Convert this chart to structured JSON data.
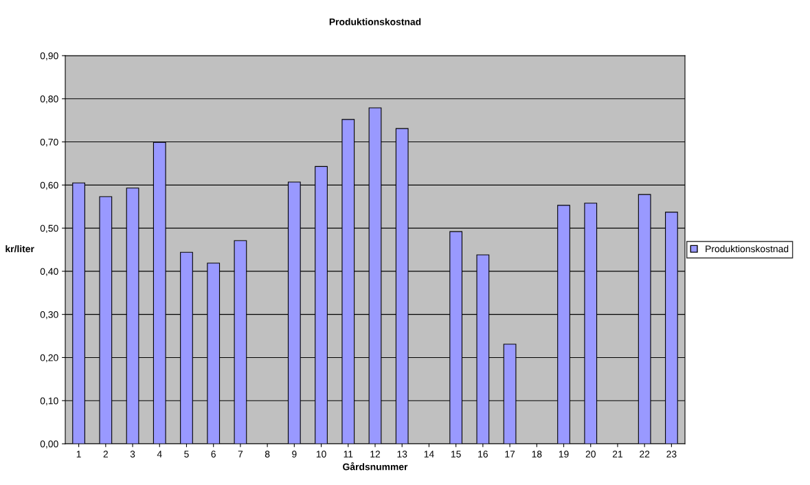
{
  "chart_data": {
    "type": "bar",
    "title": "Produktionskostnad",
    "xlabel": "Gårdsnummer",
    "ylabel": "kr/liter",
    "categories": [
      "1",
      "2",
      "3",
      "4",
      "5",
      "6",
      "7",
      "8",
      "9",
      "10",
      "11",
      "12",
      "13",
      "14",
      "15",
      "16",
      "17",
      "18",
      "19",
      "20",
      "21",
      "22",
      "23"
    ],
    "series": [
      {
        "name": "Produktionskostnad",
        "color": "#9999ff",
        "values": [
          0.605,
          0.573,
          0.593,
          0.699,
          0.444,
          0.419,
          0.471,
          null,
          0.607,
          0.643,
          0.752,
          0.779,
          0.731,
          null,
          0.492,
          0.438,
          0.231,
          null,
          0.553,
          0.558,
          null,
          0.578,
          0.537
        ]
      }
    ],
    "ylim": [
      0,
      0.9
    ],
    "yticks": [
      {
        "value": 0,
        "label": "0,00"
      },
      {
        "value": 0.1,
        "label": "0,10"
      },
      {
        "value": 0.2,
        "label": "0,20"
      },
      {
        "value": 0.3,
        "label": "0,30"
      },
      {
        "value": 0.4,
        "label": "0,40"
      },
      {
        "value": 0.5,
        "label": "0,50"
      },
      {
        "value": 0.6,
        "label": "0,60"
      },
      {
        "value": 0.7,
        "label": "0,70"
      },
      {
        "value": 0.8,
        "label": "0,80"
      },
      {
        "value": 0.9,
        "label": "0,90"
      }
    ],
    "grid": "y",
    "legend": "right"
  }
}
